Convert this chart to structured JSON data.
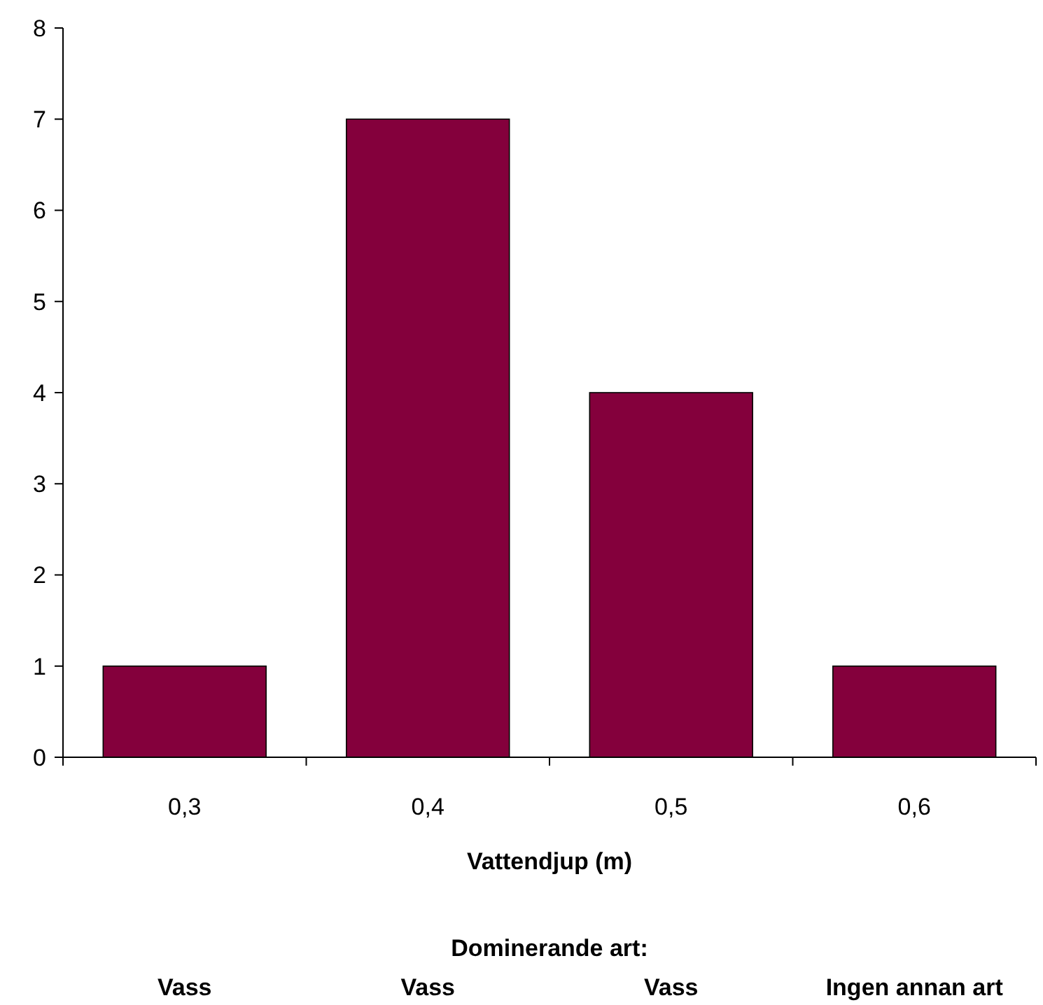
{
  "chart_data": {
    "type": "bar",
    "categories": [
      "0,3",
      "0,4",
      "0,5",
      "0,6"
    ],
    "values": [
      1,
      7,
      4,
      1
    ],
    "color": "#84003c",
    "ylim": [
      0,
      8
    ],
    "yticks": [
      0,
      1,
      2,
      3,
      4,
      5,
      6,
      7,
      8
    ],
    "grid": false,
    "xlabel": "Vattendjup (m)",
    "annotations": [
      "Dominerande art:",
      "Vass",
      "Vass",
      "Vass",
      "Ingen annan art"
    ]
  }
}
